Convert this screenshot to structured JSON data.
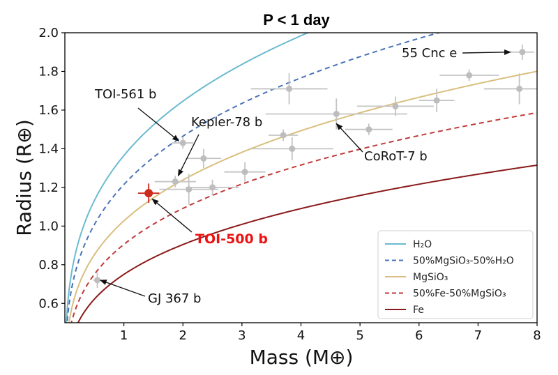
{
  "chart_data": {
    "type": "scatter",
    "title": "P < 1 day",
    "xlabel": "Mass (M⊕)",
    "ylabel": "Radius (R⊕)",
    "xlim": [
      0,
      8
    ],
    "ylim": [
      0.5,
      2.0
    ],
    "xticks": [
      "1",
      "2",
      "3",
      "4",
      "5",
      "6",
      "7",
      "8"
    ],
    "yticks": [
      "0.6",
      "0.8",
      "1.0",
      "1.2",
      "1.4",
      "1.6",
      "1.8",
      "2.0"
    ],
    "grid": false,
    "legend_position": "bottom-right",
    "models": [
      {
        "name": "H₂O",
        "color": "#6bbad0",
        "style": "solid",
        "coef": 1.365
      },
      {
        "name": "50%MgSiO₃-50%H₂O",
        "color": "#4a72b8",
        "style": "dashed",
        "coef": 1.215
      },
      {
        "name": "MgSiO₃",
        "color": "#d9bf7e",
        "style": "solid",
        "coef": 1.027
      },
      {
        "name": "50%Fe-50%MgSiO₃",
        "color": "#c03a3a",
        "style": "dashed",
        "coef": 0.905
      },
      {
        "name": "Fe",
        "color": "#8b1a1a",
        "style": "solid",
        "coef": 0.75
      }
    ],
    "points": [
      {
        "x": 0.55,
        "y": 0.72,
        "xerr": 0.07,
        "yerr": 0.04
      },
      {
        "x": 1.42,
        "y": 1.17,
        "xerr": 0.18,
        "yerr": 0.05,
        "highlight": true
      },
      {
        "x": 1.87,
        "y": 1.23,
        "xerr": 0.35,
        "yerr": 0.03
      },
      {
        "x": 2.0,
        "y": 1.43,
        "xerr": 0.18,
        "yerr": 0.03
      },
      {
        "x": 2.1,
        "y": 1.19,
        "xerr": 0.5,
        "yerr": 0.08
      },
      {
        "x": 2.35,
        "y": 1.35,
        "xerr": 0.3,
        "yerr": 0.05
      },
      {
        "x": 2.5,
        "y": 1.2,
        "xerr": 0.45,
        "yerr": 0.04
      },
      {
        "x": 3.05,
        "y": 1.28,
        "xerr": 0.35,
        "yerr": 0.05
      },
      {
        "x": 3.7,
        "y": 1.47,
        "xerr": 0.25,
        "yerr": 0.03
      },
      {
        "x": 3.8,
        "y": 1.71,
        "xerr": 0.65,
        "yerr": 0.08
      },
      {
        "x": 3.85,
        "y": 1.4,
        "xerr": 0.7,
        "yerr": 0.06
      },
      {
        "x": 4.6,
        "y": 1.58,
        "xerr": 1.2,
        "yerr": 0.08
      },
      {
        "x": 5.15,
        "y": 1.5,
        "xerr": 0.4,
        "yerr": 0.03
      },
      {
        "x": 5.6,
        "y": 1.62,
        "xerr": 0.65,
        "yerr": 0.05
      },
      {
        "x": 6.3,
        "y": 1.65,
        "xerr": 0.3,
        "yerr": 0.06
      },
      {
        "x": 6.85,
        "y": 1.78,
        "xerr": 0.5,
        "yerr": 0.03
      },
      {
        "x": 7.7,
        "y": 1.71,
        "xerr": 0.6,
        "yerr": 0.08
      },
      {
        "x": 7.75,
        "y": 1.9,
        "xerr": 0.2,
        "yerr": 0.04
      }
    ],
    "annotations": [
      {
        "text": "55 Cnc e",
        "color": "#111111",
        "bold": false,
        "arrow_to": [
          7.55,
          1.9
        ]
      },
      {
        "text": "TOI-561 b",
        "color": "#111111",
        "bold": false,
        "arrow_to": [
          1.93,
          1.44
        ]
      },
      {
        "text": "Kepler-78 b",
        "color": "#111111",
        "bold": false,
        "arrow_to": [
          1.92,
          1.26
        ]
      },
      {
        "text": "CoRoT-7 b",
        "color": "#111111",
        "bold": false,
        "arrow_to": [
          4.6,
          1.53
        ]
      },
      {
        "text": "TOI-500 b",
        "color": "#ee1111",
        "bold": true,
        "arrow_to": [
          1.48,
          1.14
        ]
      },
      {
        "text": "GJ 367 b",
        "color": "#111111",
        "bold": false,
        "arrow_to": [
          0.6,
          0.72
        ]
      }
    ]
  }
}
